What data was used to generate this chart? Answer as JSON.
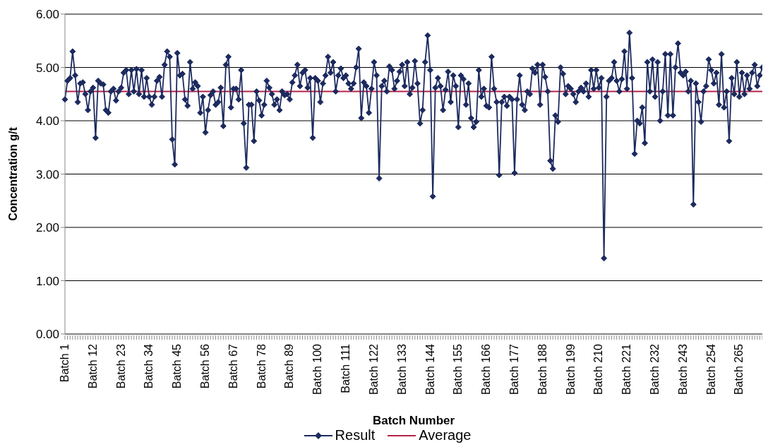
{
  "chart_data": {
    "type": "line",
    "xlabel": "Batch Number",
    "ylabel": "Concentration g/t",
    "categories": [
      "Batch 1",
      null,
      null,
      null,
      null,
      null,
      null,
      null,
      null,
      null,
      null,
      "Batch 12",
      null,
      null,
      null,
      null,
      null,
      null,
      null,
      null,
      null,
      null,
      "Batch 23",
      null,
      null,
      null,
      null,
      null,
      null,
      null,
      null,
      null,
      null,
      "Batch 34",
      null,
      null,
      null,
      null,
      null,
      null,
      null,
      null,
      null,
      null,
      "Batch 45",
      null,
      null,
      null,
      null,
      null,
      null,
      null,
      null,
      null,
      null,
      "Batch 56",
      null,
      null,
      null,
      null,
      null,
      null,
      null,
      null,
      null,
      null,
      "Batch 67",
      null,
      null,
      null,
      null,
      null,
      null,
      null,
      null,
      null,
      null,
      "Batch 78",
      null,
      null,
      null,
      null,
      null,
      null,
      null,
      null,
      null,
      null,
      "Batch 89",
      null,
      null,
      null,
      null,
      null,
      null,
      null,
      null,
      null,
      null,
      "Batch 100",
      null,
      null,
      null,
      null,
      null,
      null,
      null,
      null,
      null,
      null,
      "Batch 111",
      null,
      null,
      null,
      null,
      null,
      null,
      null,
      null,
      null,
      null,
      "Batch 122",
      null,
      null,
      null,
      null,
      null,
      null,
      null,
      null,
      null,
      null,
      "Batch 133",
      null,
      null,
      null,
      null,
      null,
      null,
      null,
      null,
      null,
      null,
      "Batch 144",
      null,
      null,
      null,
      null,
      null,
      null,
      null,
      null,
      null,
      null,
      "Batch 155",
      null,
      null,
      null,
      null,
      null,
      null,
      null,
      null,
      null,
      null,
      "Batch 166",
      null,
      null,
      null,
      null,
      null,
      null,
      null,
      null,
      null,
      null,
      "Batch 177",
      null,
      null,
      null,
      null,
      null,
      null,
      null,
      null,
      null,
      null,
      "Batch 188",
      null,
      null,
      null,
      null,
      null,
      null,
      null,
      null,
      null,
      null,
      "Batch 199",
      null,
      null,
      null,
      null,
      null,
      null,
      null,
      null,
      null,
      null,
      "Batch 210",
      null,
      null,
      null,
      null,
      null,
      null,
      null,
      null,
      null,
      null,
      "Batch 221",
      null,
      null,
      null,
      null,
      null,
      null,
      null,
      null,
      null,
      null,
      "Batch 232",
      null,
      null,
      null,
      null,
      null,
      null,
      null,
      null,
      null,
      null,
      "Batch 243",
      null,
      null,
      null,
      null,
      null,
      null,
      null,
      null,
      null,
      null,
      "Batch 254",
      null,
      null,
      null,
      null,
      null,
      null,
      null,
      null,
      null,
      null,
      "Batch 265",
      null,
      null,
      null,
      null,
      null,
      null,
      null,
      null,
      null
    ],
    "series": [
      {
        "name": "Result",
        "color": "#1c2a5e",
        "values": [
          4.4,
          4.75,
          4.8,
          5.3,
          4.85,
          4.35,
          4.7,
          4.72,
          4.5,
          4.2,
          4.55,
          4.62,
          3.68,
          4.75,
          4.7,
          4.68,
          4.2,
          4.15,
          4.55,
          4.6,
          4.38,
          4.55,
          4.62,
          4.9,
          4.95,
          4.5,
          4.95,
          4.55,
          4.97,
          4.5,
          4.95,
          4.45,
          4.8,
          4.45,
          4.3,
          4.45,
          4.75,
          4.82,
          4.45,
          5.05,
          5.3,
          5.2,
          3.65,
          3.18,
          5.27,
          4.85,
          4.88,
          4.4,
          4.28,
          5.1,
          4.6,
          4.72,
          4.65,
          4.15,
          4.45,
          3.78,
          4.2,
          4.48,
          4.55,
          4.3,
          4.35,
          4.62,
          3.9,
          5.05,
          5.2,
          4.25,
          4.6,
          4.6,
          4.4,
          4.95,
          3.95,
          3.12,
          4.3,
          4.3,
          3.62,
          4.55,
          4.38,
          4.1,
          4.3,
          4.75,
          4.62,
          4.5,
          4.3,
          4.4,
          4.2,
          4.55,
          4.48,
          4.5,
          4.4,
          4.72,
          4.85,
          5.05,
          4.65,
          4.9,
          4.95,
          4.62,
          4.8,
          3.68,
          4.8,
          4.75,
          4.35,
          4.7,
          4.85,
          5.2,
          4.9,
          5.1,
          4.55,
          4.85,
          4.98,
          4.8,
          4.85,
          4.7,
          4.6,
          4.7,
          5.0,
          5.35,
          4.05,
          4.72,
          4.65,
          4.15,
          4.6,
          5.1,
          4.85,
          2.92,
          4.65,
          4.75,
          4.55,
          5.02,
          4.95,
          4.6,
          4.75,
          4.92,
          5.05,
          4.65,
          5.1,
          4.5,
          4.62,
          5.12,
          4.7,
          3.95,
          4.2,
          5.1,
          5.6,
          4.95,
          2.58,
          4.62,
          4.8,
          4.65,
          4.2,
          4.58,
          4.92,
          4.35,
          4.85,
          4.65,
          3.88,
          4.85,
          4.78,
          4.3,
          4.7,
          4.05,
          3.88,
          3.98,
          4.95,
          4.45,
          4.6,
          4.28,
          4.25,
          5.2,
          4.6,
          4.35,
          2.98,
          4.35,
          4.45,
          4.28,
          4.45,
          4.4,
          3.02,
          4.4,
          4.85,
          4.3,
          4.2,
          4.55,
          4.5,
          4.98,
          4.9,
          5.05,
          4.3,
          5.05,
          4.82,
          4.55,
          3.25,
          3.1,
          4.1,
          3.98,
          5.0,
          4.88,
          4.5,
          4.65,
          4.6,
          4.5,
          4.35,
          4.55,
          4.62,
          4.55,
          4.7,
          4.45,
          4.95,
          4.6,
          4.95,
          4.62,
          4.8,
          1.42,
          4.45,
          4.75,
          4.8,
          5.1,
          4.75,
          4.55,
          4.78,
          5.3,
          4.6,
          5.65,
          4.8,
          3.38,
          4.0,
          3.95,
          4.25,
          3.58,
          5.1,
          4.55,
          5.15,
          4.45,
          5.1,
          4.0,
          4.55,
          5.25,
          4.1,
          5.25,
          4.1,
          5.0,
          5.45,
          4.9,
          4.85,
          4.92,
          4.55,
          4.75,
          2.43,
          4.7,
          4.35,
          3.98,
          4.55,
          4.65,
          5.15,
          4.95,
          4.7,
          4.9,
          4.3,
          5.25,
          4.25,
          4.55,
          3.62,
          4.8,
          4.5,
          5.1,
          4.45,
          4.9,
          4.5,
          4.85,
          4.6,
          4.9,
          5.05,
          4.65,
          4.85,
          5.0
        ]
      }
    ],
    "ref_lines": [
      {
        "axis": "y",
        "value": 4.55,
        "label": "Average",
        "color": "#b5234a"
      }
    ],
    "ylim": [
      0,
      6
    ],
    "yticks": [
      {
        "value": 0,
        "label": "0.00"
      },
      {
        "value": 1,
        "label": "1.00"
      },
      {
        "value": 2,
        "label": "2.00"
      },
      {
        "value": 3,
        "label": "3.00"
      },
      {
        "value": 4,
        "label": "4.00"
      },
      {
        "value": 5,
        "label": "5.00"
      },
      {
        "value": 6,
        "label": "6.00"
      }
    ],
    "grid": "y",
    "legend": "bottom",
    "marker": "diamond",
    "line_style": "solid"
  }
}
